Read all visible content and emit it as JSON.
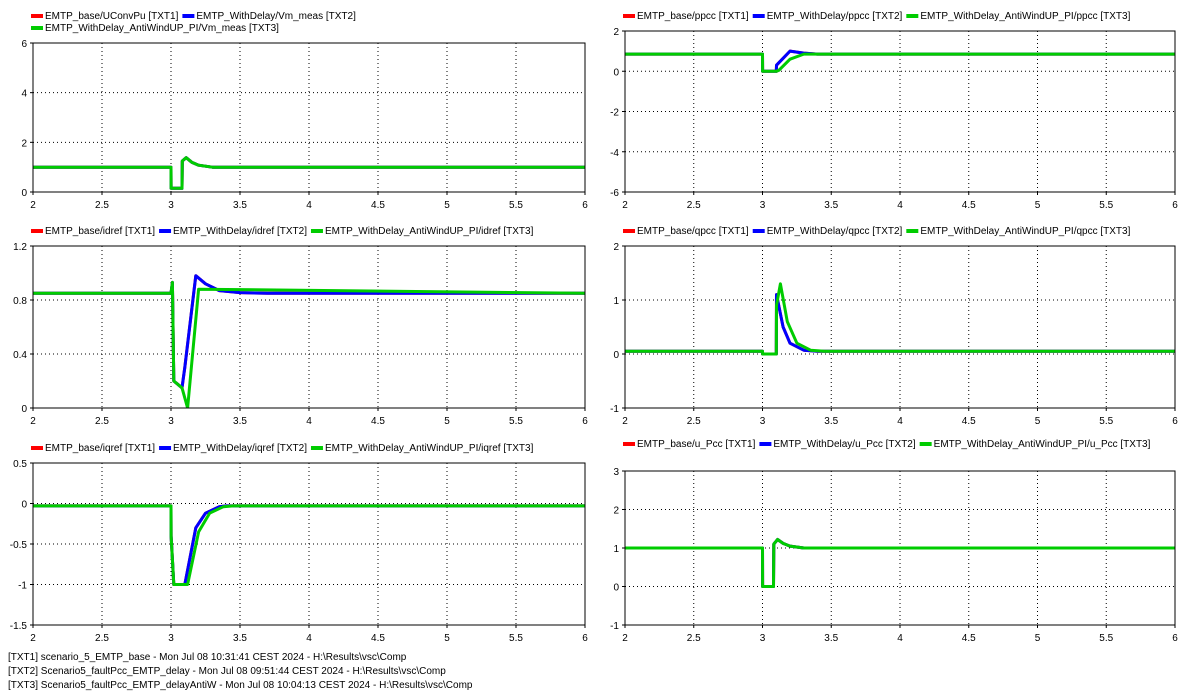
{
  "chart_data": [
    {
      "type": "line",
      "xlim": [
        2,
        6
      ],
      "ylim": [
        0,
        6
      ],
      "xticks": [
        "2",
        "2.5",
        "3",
        "3.5",
        "4",
        "4.5",
        "5",
        "5.5",
        "6"
      ],
      "yticks": [
        "0",
        "2",
        "4",
        "6"
      ],
      "grid": true,
      "legend_placement": "top-left",
      "series": [
        {
          "name": "EMTP_base/UConvPu [TXT1]",
          "color": "#ff0000",
          "points": [
            [
              2,
              1.0
            ],
            [
              3.0,
              1.0
            ],
            [
              3.001,
              0.15
            ],
            [
              3.08,
              0.15
            ],
            [
              3.082,
              1.25
            ],
            [
              3.11,
              1.38
            ],
            [
              3.15,
              1.2
            ],
            [
              3.2,
              1.08
            ],
            [
              3.3,
              1.0
            ],
            [
              6,
              1.0
            ]
          ]
        },
        {
          "name": "EMTP_WithDelay/Vm_meas [TXT2]",
          "color": "#0000ff",
          "points": [
            [
              2,
              1.0
            ],
            [
              3.0,
              1.0
            ],
            [
              3.001,
              0.15
            ],
            [
              3.08,
              0.15
            ],
            [
              3.082,
              1.25
            ],
            [
              3.11,
              1.38
            ],
            [
              3.15,
              1.2
            ],
            [
              3.2,
              1.08
            ],
            [
              3.3,
              1.0
            ],
            [
              6,
              1.0
            ]
          ]
        },
        {
          "name": "EMTP_WithDelay_AntiWindUP_PI/Vm_meas [TXT3]",
          "color": "#00cc00",
          "points": [
            [
              2,
              1.0
            ],
            [
              3.0,
              1.0
            ],
            [
              3.001,
              0.15
            ],
            [
              3.08,
              0.15
            ],
            [
              3.082,
              1.25
            ],
            [
              3.11,
              1.38
            ],
            [
              3.15,
              1.2
            ],
            [
              3.2,
              1.08
            ],
            [
              3.3,
              1.0
            ],
            [
              6,
              1.0
            ]
          ]
        }
      ]
    },
    {
      "type": "line",
      "xlim": [
        2,
        6
      ],
      "ylim": [
        -6,
        2
      ],
      "xticks": [
        "2",
        "2.5",
        "3",
        "3.5",
        "4",
        "4.5",
        "5",
        "5.5",
        "6"
      ],
      "yticks": [
        "-6",
        "-4",
        "-2",
        "0",
        "2"
      ],
      "grid": true,
      "legend_placement": "top-left",
      "series": [
        {
          "name": "EMTP_base/ppcc [TXT1]",
          "color": "#ff0000",
          "points": [
            [
              2,
              0.85
            ],
            [
              3.0,
              0.85
            ],
            [
              3.001,
              0.0
            ],
            [
              3.1,
              0.0
            ],
            [
              3.102,
              0.3
            ],
            [
              3.2,
              1.0
            ],
            [
              3.3,
              0.9
            ],
            [
              3.4,
              0.85
            ],
            [
              6,
              0.85
            ]
          ]
        },
        {
          "name": "EMTP_WithDelay/ppcc [TXT2]",
          "color": "#0000ff",
          "points": [
            [
              2,
              0.85
            ],
            [
              3.0,
              0.85
            ],
            [
              3.001,
              0.0
            ],
            [
              3.1,
              0.0
            ],
            [
              3.102,
              0.3
            ],
            [
              3.2,
              1.0
            ],
            [
              3.3,
              0.9
            ],
            [
              3.4,
              0.85
            ],
            [
              6,
              0.85
            ]
          ]
        },
        {
          "name": "EMTP_WithDelay_AntiWindUP_PI/ppcc [TXT3]",
          "color": "#00cc00",
          "points": [
            [
              2,
              0.85
            ],
            [
              3.0,
              0.85
            ],
            [
              3.001,
              0.0
            ],
            [
              3.1,
              0.0
            ],
            [
              3.12,
              0.05
            ],
            [
              3.2,
              0.6
            ],
            [
              3.3,
              0.85
            ],
            [
              6,
              0.85
            ]
          ]
        }
      ]
    },
    {
      "type": "line",
      "xlim": [
        2,
        6
      ],
      "ylim": [
        0,
        1.2
      ],
      "xticks": [
        "2",
        "2.5",
        "3",
        "3.5",
        "4",
        "4.5",
        "5",
        "5.5",
        "6"
      ],
      "yticks": [
        "0",
        "0.4",
        "0.8",
        "1.2"
      ],
      "grid": true,
      "legend_placement": "top-left",
      "series": [
        {
          "name": "EMTP_base/idref [TXT1]",
          "color": "#ff0000",
          "points": [
            [
              2,
              0.85
            ],
            [
              3.0,
              0.85
            ],
            [
              3.01,
              0.93
            ],
            [
              3.02,
              0.2
            ],
            [
              3.08,
              0.15
            ],
            [
              3.1,
              0.3
            ],
            [
              3.18,
              0.98
            ],
            [
              3.25,
              0.92
            ],
            [
              3.35,
              0.87
            ],
            [
              3.5,
              0.855
            ],
            [
              3.7,
              0.85
            ],
            [
              6,
              0.85
            ]
          ]
        },
        {
          "name": "EMTP_WithDelay/idref [TXT2]",
          "color": "#0000ff",
          "points": [
            [
              2,
              0.85
            ],
            [
              3.0,
              0.85
            ],
            [
              3.01,
              0.93
            ],
            [
              3.02,
              0.2
            ],
            [
              3.08,
              0.15
            ],
            [
              3.1,
              0.3
            ],
            [
              3.18,
              0.98
            ],
            [
              3.25,
              0.92
            ],
            [
              3.35,
              0.87
            ],
            [
              3.5,
              0.855
            ],
            [
              3.7,
              0.85
            ],
            [
              6,
              0.85
            ]
          ]
        },
        {
          "name": "EMTP_WithDelay_AntiWindUP_PI/idref [TXT3]",
          "color": "#00cc00",
          "points": [
            [
              2,
              0.85
            ],
            [
              3.0,
              0.85
            ],
            [
              3.01,
              0.93
            ],
            [
              3.02,
              0.2
            ],
            [
              3.08,
              0.15
            ],
            [
              3.12,
              0.0
            ],
            [
              3.2,
              0.88
            ],
            [
              6,
              0.85
            ]
          ]
        }
      ]
    },
    {
      "type": "line",
      "xlim": [
        2,
        6
      ],
      "ylim": [
        -1,
        2
      ],
      "xticks": [
        "2",
        "2.5",
        "3",
        "3.5",
        "4",
        "4.5",
        "5",
        "5.5",
        "6"
      ],
      "yticks": [
        "-1",
        "0",
        "1",
        "2"
      ],
      "grid": true,
      "legend_placement": "top-left",
      "series": [
        {
          "name": "EMTP_base/qpcc [TXT1]",
          "color": "#ff0000",
          "points": [
            [
              2,
              0.05
            ],
            [
              3.0,
              0.05
            ],
            [
              3.001,
              0.0
            ],
            [
              3.1,
              0.0
            ],
            [
              3.102,
              1.1
            ],
            [
              3.15,
              0.5
            ],
            [
              3.2,
              0.2
            ],
            [
              3.3,
              0.07
            ],
            [
              3.4,
              0.05
            ],
            [
              6,
              0.05
            ]
          ]
        },
        {
          "name": "EMTP_WithDelay/qpcc [TXT2]",
          "color": "#0000ff",
          "points": [
            [
              2,
              0.05
            ],
            [
              3.0,
              0.05
            ],
            [
              3.001,
              0.0
            ],
            [
              3.1,
              0.0
            ],
            [
              3.102,
              1.1
            ],
            [
              3.15,
              0.5
            ],
            [
              3.2,
              0.2
            ],
            [
              3.3,
              0.07
            ],
            [
              3.4,
              0.05
            ],
            [
              6,
              0.05
            ]
          ]
        },
        {
          "name": "EMTP_WithDelay_AntiWindUP_PI/qpcc [TXT3]",
          "color": "#00cc00",
          "points": [
            [
              2,
              0.05
            ],
            [
              3.0,
              0.05
            ],
            [
              3.001,
              0.0
            ],
            [
              3.1,
              0.0
            ],
            [
              3.102,
              0.9
            ],
            [
              3.13,
              1.3
            ],
            [
              3.18,
              0.6
            ],
            [
              3.25,
              0.2
            ],
            [
              3.35,
              0.07
            ],
            [
              3.45,
              0.05
            ],
            [
              6,
              0.05
            ]
          ]
        }
      ]
    },
    {
      "type": "line",
      "xlim": [
        2,
        6
      ],
      "ylim": [
        -1.5,
        0.5
      ],
      "xticks": [
        "2",
        "2.5",
        "3",
        "3.5",
        "4",
        "4.5",
        "5",
        "5.5",
        "6"
      ],
      "yticks": [
        "-1.5",
        "-1",
        "-0.5",
        "0",
        "0.5"
      ],
      "grid": true,
      "legend_placement": "top-left",
      "series": [
        {
          "name": "EMTP_base/iqref [TXT1]",
          "color": "#ff0000",
          "points": [
            [
              2,
              -0.03
            ],
            [
              3.0,
              -0.03
            ],
            [
              3.001,
              -0.4
            ],
            [
              3.02,
              -1.0
            ],
            [
              3.1,
              -1.0
            ],
            [
              3.18,
              -0.3
            ],
            [
              3.25,
              -0.12
            ],
            [
              3.35,
              -0.04
            ],
            [
              3.4,
              -0.03
            ],
            [
              6,
              -0.03
            ]
          ]
        },
        {
          "name": "EMTP_WithDelay/iqref [TXT2]",
          "color": "#0000ff",
          "points": [
            [
              2,
              -0.03
            ],
            [
              3.0,
              -0.03
            ],
            [
              3.001,
              -0.4
            ],
            [
              3.02,
              -1.0
            ],
            [
              3.1,
              -1.0
            ],
            [
              3.18,
              -0.3
            ],
            [
              3.25,
              -0.12
            ],
            [
              3.35,
              -0.04
            ],
            [
              3.4,
              -0.03
            ],
            [
              6,
              -0.03
            ]
          ]
        },
        {
          "name": "EMTP_WithDelay_AntiWindUP_PI/iqref [TXT3]",
          "color": "#00cc00",
          "points": [
            [
              2,
              -0.03
            ],
            [
              3.0,
              -0.03
            ],
            [
              3.001,
              -0.4
            ],
            [
              3.02,
              -1.0
            ],
            [
              3.12,
              -1.0
            ],
            [
              3.2,
              -0.35
            ],
            [
              3.28,
              -0.12
            ],
            [
              3.38,
              -0.04
            ],
            [
              3.45,
              -0.03
            ],
            [
              6,
              -0.03
            ]
          ]
        }
      ]
    },
    {
      "type": "line",
      "xlim": [
        2,
        6
      ],
      "ylim": [
        -1,
        3
      ],
      "xticks": [
        "2",
        "2.5",
        "3",
        "3.5",
        "4",
        "4.5",
        "5",
        "5.5",
        "6"
      ],
      "yticks": [
        "-1",
        "0",
        "1",
        "2",
        "3"
      ],
      "grid": true,
      "legend_placement": "top-left",
      "series": [
        {
          "name": "EMTP_base/u_Pcc [TXT1]",
          "color": "#ff0000",
          "points": [
            [
              2,
              1.0
            ],
            [
              3.0,
              1.0
            ],
            [
              3.001,
              0.0
            ],
            [
              3.08,
              0.0
            ],
            [
              3.082,
              1.1
            ],
            [
              3.11,
              1.22
            ],
            [
              3.15,
              1.12
            ],
            [
              3.2,
              1.05
            ],
            [
              3.3,
              1.0
            ],
            [
              6,
              1.0
            ]
          ]
        },
        {
          "name": "EMTP_WithDelay/u_Pcc [TXT2]",
          "color": "#0000ff",
          "points": [
            [
              2,
              1.0
            ],
            [
              3.0,
              1.0
            ],
            [
              3.001,
              0.0
            ],
            [
              3.08,
              0.0
            ],
            [
              3.082,
              1.1
            ],
            [
              3.11,
              1.22
            ],
            [
              3.15,
              1.12
            ],
            [
              3.2,
              1.05
            ],
            [
              3.3,
              1.0
            ],
            [
              6,
              1.0
            ]
          ]
        },
        {
          "name": "EMTP_WithDelay_AntiWindUP_PI/u_Pcc [TXT3]",
          "color": "#00cc00",
          "points": [
            [
              2,
              1.0
            ],
            [
              3.0,
              1.0
            ],
            [
              3.001,
              0.0
            ],
            [
              3.08,
              0.0
            ],
            [
              3.082,
              1.1
            ],
            [
              3.11,
              1.22
            ],
            [
              3.15,
              1.12
            ],
            [
              3.2,
              1.05
            ],
            [
              3.3,
              1.0
            ],
            [
              6,
              1.0
            ]
          ]
        }
      ]
    }
  ],
  "footer": {
    "line1": "[TXT1] scenario_5_EMTP_base - Mon Jul 08 10:31:41 CEST 2024 - H:\\Results\\vsc\\Comp",
    "line2": "[TXT2] Scenario5_faultPcc_EMTP_delay - Mon Jul 08 09:51:44 CEST 2024 - H:\\Results\\vsc\\Comp",
    "line3": "[TXT3] Scenario5_faultPcc_EMTP_delayAntiW - Mon Jul 08 10:04:13 CEST 2024 - H:\\Results\\vsc\\Comp"
  }
}
